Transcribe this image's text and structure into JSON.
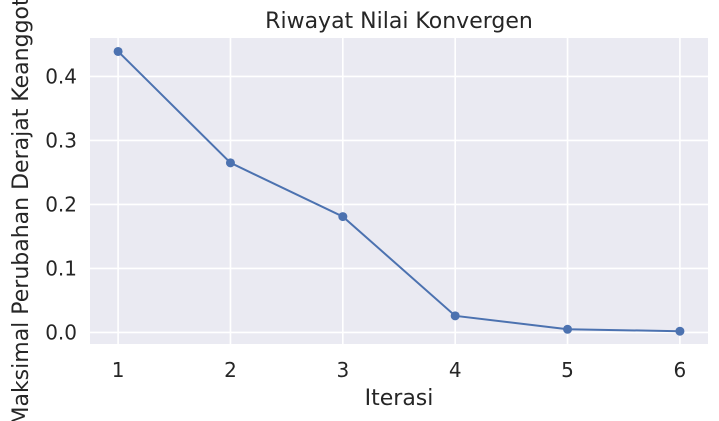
{
  "chart_data": {
    "type": "line",
    "title": "Riwayat Nilai Konvergen",
    "xlabel": "Iterasi",
    "ylabel": "Maksimal Perubahan Derajat Keanggotaan",
    "x": [
      1,
      2,
      3,
      4,
      5,
      6
    ],
    "series": [
      {
        "values": [
          0.439,
          0.265,
          0.181,
          0.026,
          0.005,
          0.002
        ]
      }
    ],
    "xticks": [
      "1",
      "2",
      "3",
      "4",
      "5",
      "6"
    ],
    "yticks": [
      "0.0",
      "0.1",
      "0.2",
      "0.3",
      "0.4"
    ],
    "xlim": [
      0.75,
      6.25
    ],
    "ylim": [
      -0.018,
      0.46
    ],
    "grid": true,
    "colors": {
      "background": "#eaeaf2",
      "grid": "#ffffff",
      "line": "#4c72b0"
    }
  }
}
